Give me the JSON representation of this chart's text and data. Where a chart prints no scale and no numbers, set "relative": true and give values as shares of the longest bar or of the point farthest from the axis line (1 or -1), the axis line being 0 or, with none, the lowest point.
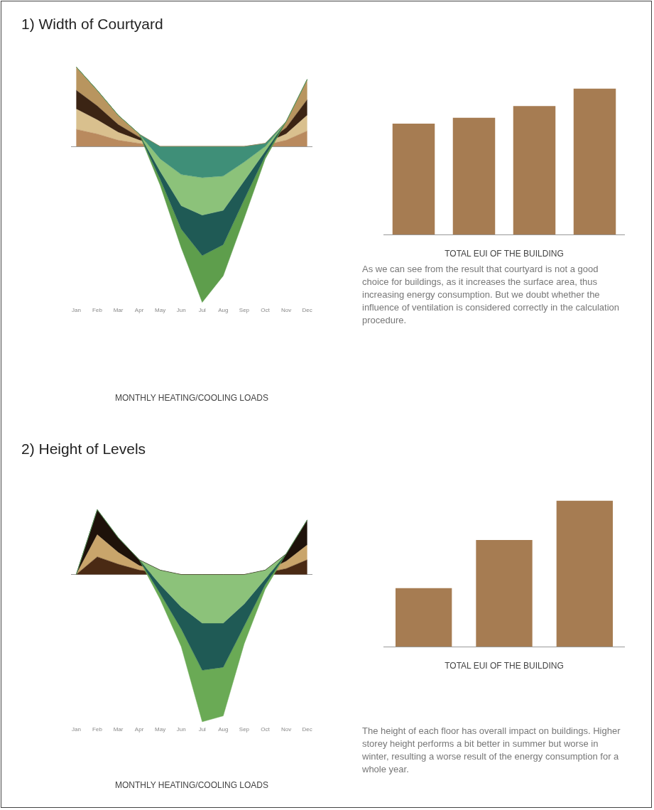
{
  "chart_data": [
    {
      "type": "area",
      "title": "1) Width of Courtyard",
      "xlabel": "MONTHLY HEATING/COOLING LOADS",
      "relative": true,
      "stacked": true,
      "categories": [
        "Jan",
        "Feb",
        "Mar",
        "Apr",
        "May",
        "Jun",
        "Jul",
        "Aug",
        "Sep",
        "Oct",
        "Nov",
        "Dec"
      ],
      "series": [
        {
          "color": "#b98a5e",
          "values": [
            0.11,
            0.08,
            0.04,
            0.02,
            0,
            0,
            0,
            0,
            0,
            0.01,
            0.04,
            0.1
          ]
        },
        {
          "color": "#d9c08e",
          "values": [
            0.13,
            0.09,
            0.05,
            0.02,
            0,
            0,
            0,
            0,
            0,
            0.01,
            0.04,
            0.1
          ]
        },
        {
          "color": "#3b2414",
          "values": [
            0.12,
            0.09,
            0.05,
            0.02,
            0,
            0,
            0,
            0,
            0,
            0,
            0.04,
            0.1
          ]
        },
        {
          "color": "#b8955f",
          "values": [
            0.15,
            0.1,
            0.06,
            0.02,
            0,
            0,
            0,
            0,
            0,
            0,
            0.04,
            0.13
          ]
        },
        {
          "color": "#3f8f78",
          "values": [
            0,
            0,
            0,
            0,
            -0.08,
            -0.18,
            -0.2,
            -0.19,
            -0.1,
            -0.02,
            0,
            0
          ]
        },
        {
          "color": "#8cc27a",
          "values": [
            0,
            0,
            0,
            0,
            -0.08,
            -0.2,
            -0.24,
            -0.22,
            -0.12,
            -0.03,
            0,
            0
          ]
        },
        {
          "color": "#1f5a55",
          "values": [
            0,
            0,
            0,
            0,
            -0.05,
            -0.15,
            -0.26,
            -0.22,
            -0.12,
            -0.03,
            0,
            0
          ]
        },
        {
          "color": "#5e9e4c",
          "values": [
            0,
            0,
            0,
            0,
            -0.04,
            -0.12,
            -0.3,
            -0.2,
            -0.12,
            -0.02,
            0,
            0
          ]
        }
      ]
    },
    {
      "type": "bar",
      "xlabel": "TOTAL EUI OF THE BUILDING",
      "relative": true,
      "categories": [
        null,
        null,
        null,
        null
      ],
      "color": "#a67c52",
      "values": [
        0.76,
        0.8,
        0.88,
        1
      ],
      "annotations": [
        "As we can see from the result that courtyard is not a good choice for buildings, as it increases the surface area, thus increasing energy consumption. But we doubt whether the influence of ventilation is considered correctly in the calculation procedure."
      ]
    },
    {
      "type": "area",
      "title": "2) Height of Levels",
      "xlabel": "MONTHLY HEATING/COOLING LOADS",
      "relative": true,
      "stacked": true,
      "categories": [
        "Jan",
        "Feb",
        "Mar",
        "Apr",
        "May",
        "Jun",
        "Jul",
        "Aug",
        "Sep",
        "Oct",
        "Nov",
        "Dec"
      ],
      "series": [
        {
          "color": "#4a2a14",
          "values": [
            0,
            0.12,
            0.07,
            0.03,
            0.01,
            0,
            0,
            0,
            0,
            0.01,
            0.04,
            0.1
          ]
        },
        {
          "color": "#c9a56b",
          "values": [
            0,
            0.15,
            0.08,
            0.03,
            0.01,
            0,
            0,
            0,
            0,
            0.01,
            0.05,
            0.1
          ]
        },
        {
          "color": "#1e120a",
          "values": [
            0,
            0.17,
            0.1,
            0.04,
            0.01,
            0,
            0,
            0,
            0,
            0.01,
            0.05,
            0.17
          ]
        },
        {
          "color": "#8cc27a",
          "values": [
            0,
            0,
            0,
            0,
            -0.1,
            -0.22,
            -0.33,
            -0.33,
            -0.2,
            -0.06,
            0,
            0
          ]
        },
        {
          "color": "#1f5a55",
          "values": [
            0,
            0,
            0,
            0,
            -0.06,
            -0.15,
            -0.32,
            -0.3,
            -0.15,
            -0.04,
            0,
            0
          ]
        },
        {
          "color": "#6aaa55",
          "values": [
            0,
            0,
            0,
            0,
            -0.04,
            -0.12,
            -0.35,
            -0.33,
            -0.12,
            -0.03,
            0,
            0
          ]
        }
      ]
    },
    {
      "type": "bar",
      "xlabel": "TOTAL EUI OF THE BUILDING",
      "relative": true,
      "categories": [
        null,
        null,
        null
      ],
      "color": "#a67c52",
      "values": [
        0.4,
        0.73,
        1
      ],
      "annotations": [
        "The height of each floor has overall impact on buildings. Higher storey height performs a bit better in summer but worse in winter, resulting a worse result of the energy consumption for a whole year."
      ]
    }
  ]
}
